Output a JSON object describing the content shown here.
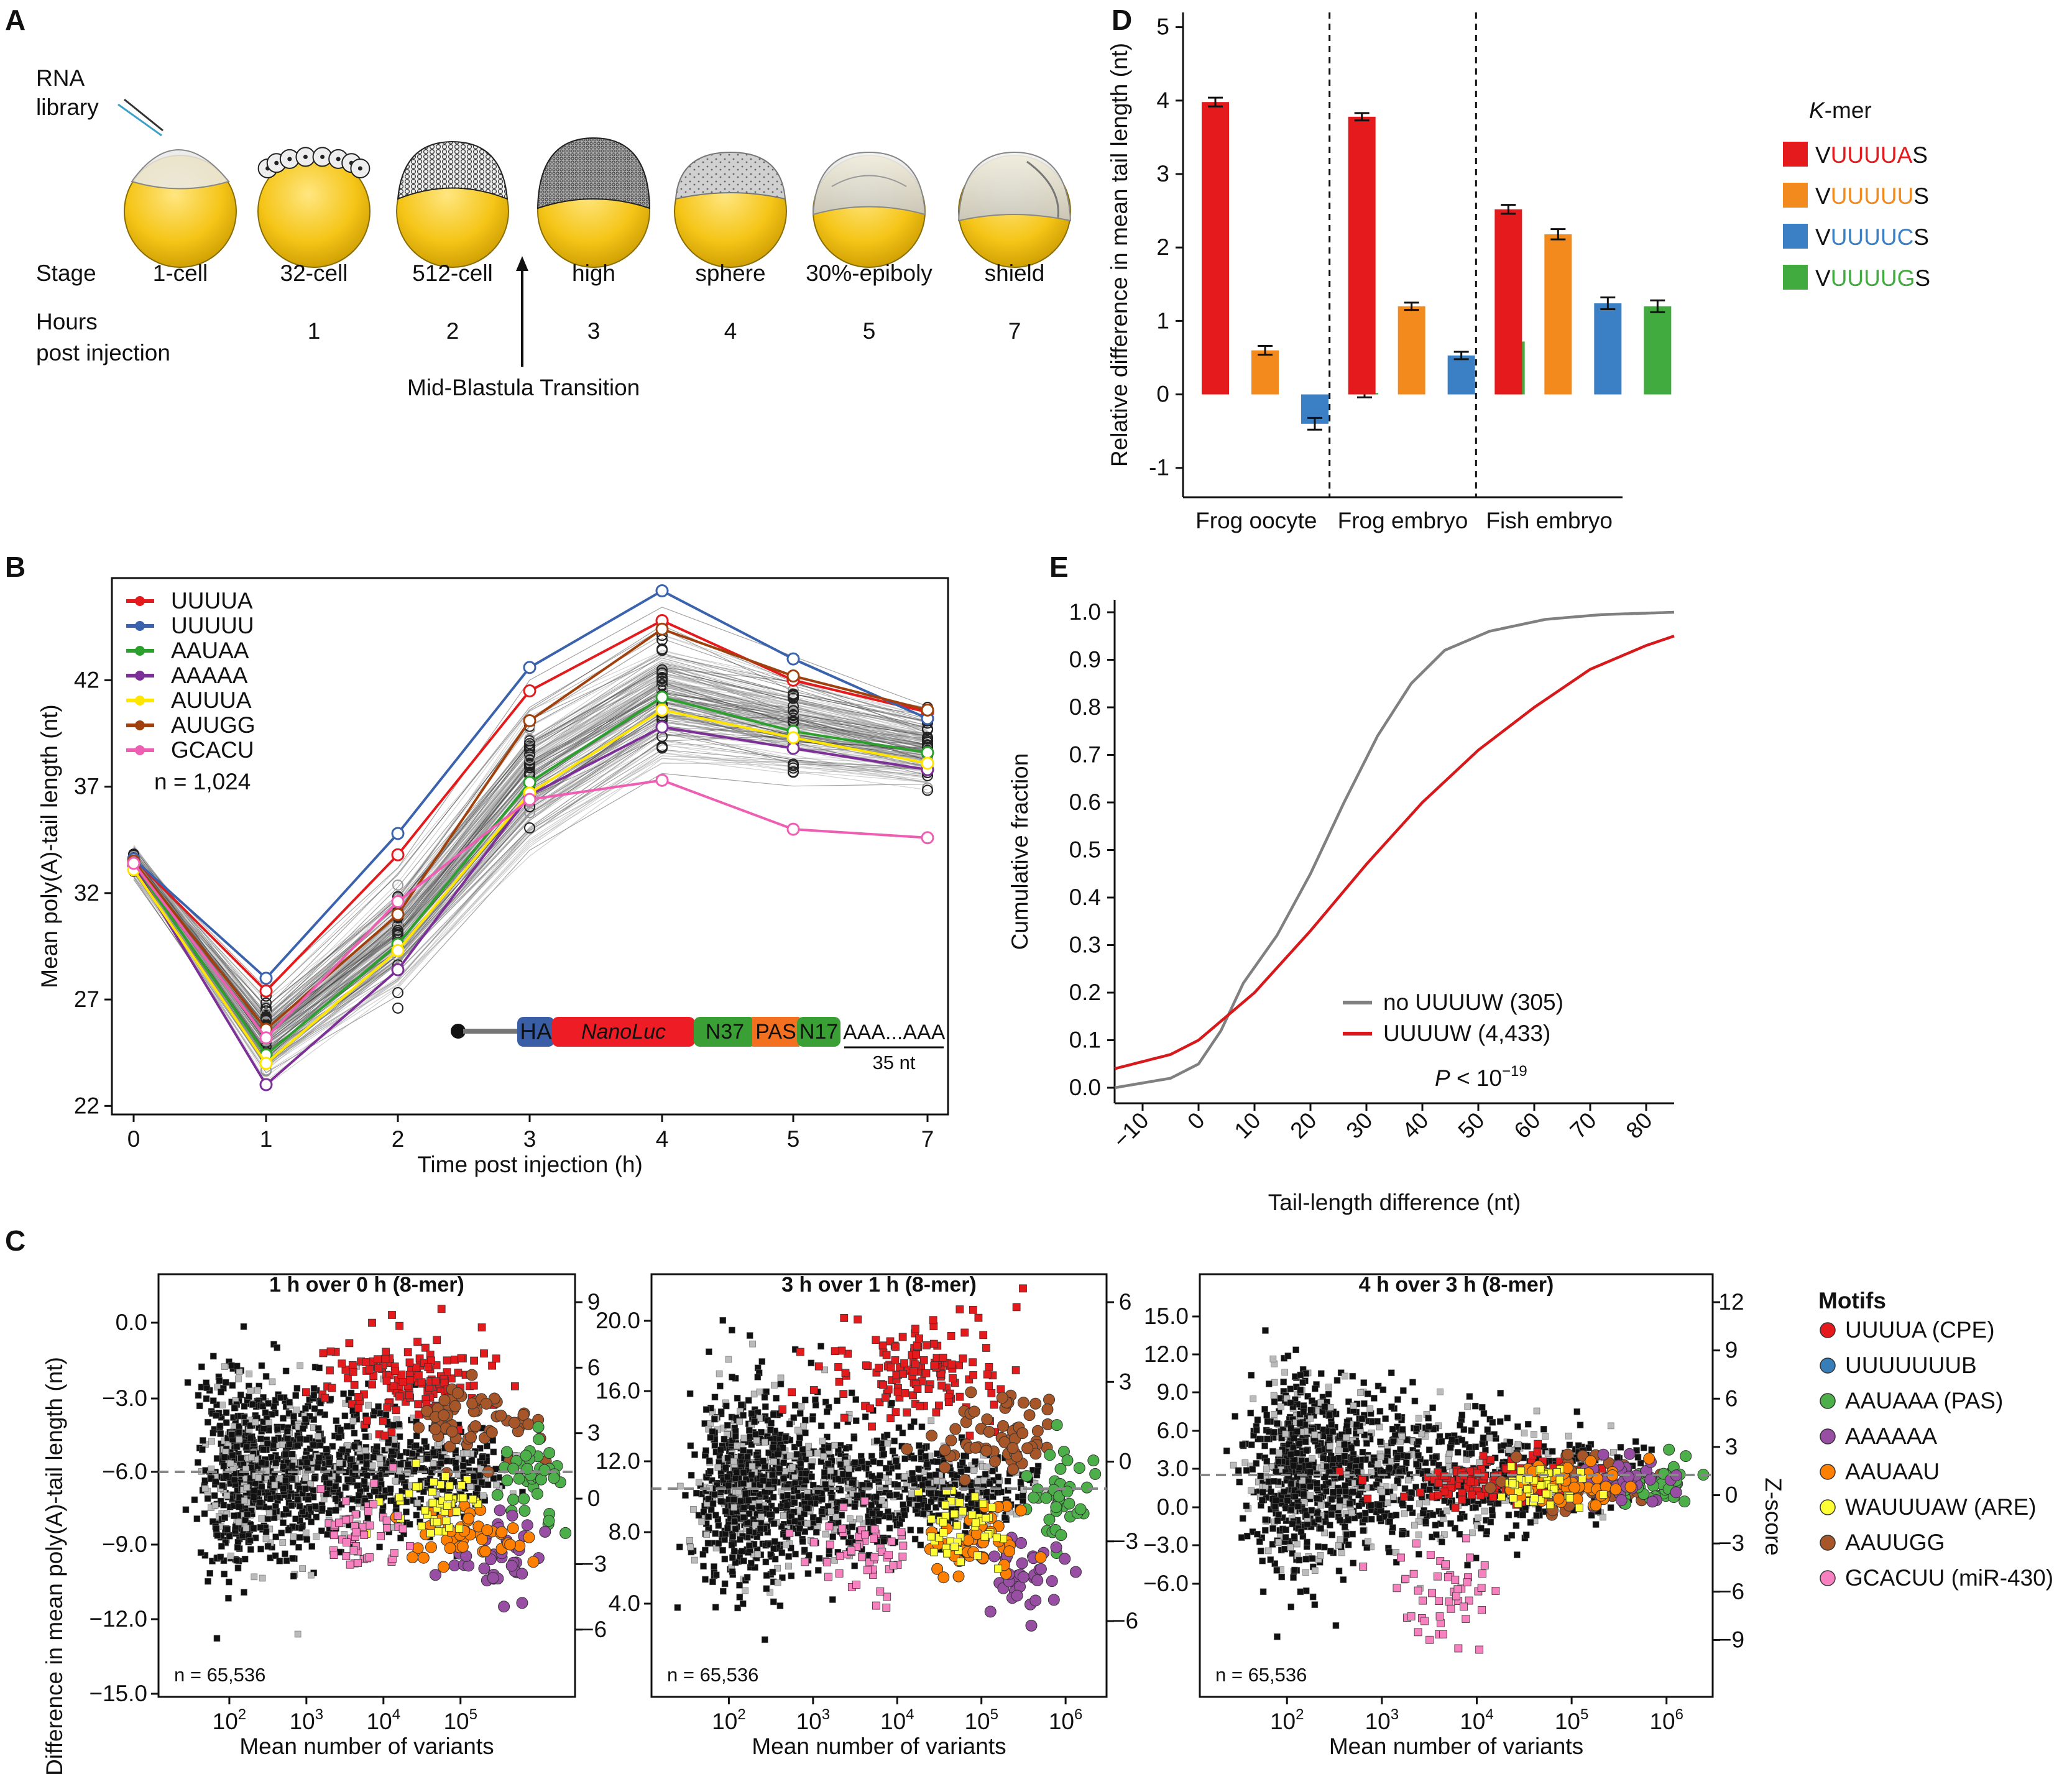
{
  "panels": {
    "a": {
      "label": "A",
      "stages": [
        "1-cell",
        "32-cell",
        "512-cell",
        "high",
        "sphere",
        "30%-epiboly",
        "shield"
      ],
      "hours": [
        "",
        "1",
        "2",
        "3",
        "4",
        "5",
        "7"
      ],
      "stage_heading": "Stage",
      "hours_heading_line1": "Hours",
      "hours_heading_line2": "post injection",
      "rna_line1": "RNA",
      "rna_line2": "library",
      "mbt_label": "Mid-Blastula Transition"
    },
    "b": {
      "label": "B",
      "n_label": "n = 1,024",
      "construct": {
        "ha": "HA",
        "nanoluc": "NanoLuc",
        "n37": "N37",
        "pas": "PAS",
        "n17": "N17",
        "tail": "AAA...AAA",
        "tail_len": "35 nt"
      }
    },
    "c": {
      "label": "C",
      "y_label": "Difference in mean poly(A)-tail length (nt)",
      "z_label": "Z-score",
      "legend_title": "Motifs"
    },
    "d": {
      "label": "D"
    },
    "e": {
      "label": "E"
    }
  },
  "chart_data": [
    {
      "id": "panel-b",
      "type": "line",
      "xlabel": "Time post injection (h)",
      "ylabel": "Mean poly(A)-tail length (nt)",
      "x": [
        0,
        1,
        2,
        3,
        4,
        5,
        7
      ],
      "x_ticks": [
        "0",
        "1",
        "2",
        "3",
        "4",
        "5",
        "7"
      ],
      "y_ticks": [
        22,
        27,
        32,
        37,
        42
      ],
      "ylim": [
        21.6,
        46.8
      ],
      "series": [
        {
          "name": "UUUUA",
          "color": "#e41a1c",
          "values": [
            33.6,
            27.4,
            33.8,
            41.5,
            44.8,
            42.0,
            40.5
          ]
        },
        {
          "name": "UUUUU",
          "color": "#3a62ad",
          "values": [
            33.6,
            28.0,
            34.8,
            42.6,
            46.2,
            43.0,
            40.2
          ]
        },
        {
          "name": "AAUAA",
          "color": "#2ca02c",
          "values": [
            33.4,
            24.4,
            29.6,
            37.2,
            41.2,
            39.6,
            38.6
          ]
        },
        {
          "name": "AAAAA",
          "color": "#7b2f97",
          "values": [
            33.3,
            23.0,
            28.4,
            36.6,
            39.8,
            38.8,
            37.8
          ]
        },
        {
          "name": "AUUUA",
          "color": "#ffe600",
          "values": [
            33.1,
            24.0,
            29.3,
            36.7,
            40.6,
            39.3,
            38.1
          ]
        },
        {
          "name": "AUUGG",
          "color": "#a0410d",
          "values": [
            33.5,
            25.6,
            31.0,
            40.1,
            44.4,
            42.2,
            40.6
          ]
        },
        {
          "name": "GCACU",
          "color": "#ee5fb3",
          "values": [
            33.4,
            25.2,
            31.6,
            36.4,
            37.3,
            35.0,
            34.6
          ]
        }
      ]
    },
    {
      "id": "panel-c1",
      "type": "scatter",
      "title": "1 h over 0 h (8-mer)",
      "xlabel": "Mean number of variants",
      "x_ticks": [
        "10^2",
        "10^3",
        "10^4",
        "10^5"
      ],
      "y_ticks": [
        0.0,
        -3.0,
        -6.0,
        -9.0,
        -12.0,
        -15.0
      ],
      "y_ticks_labels": [
        "0.0",
        "−3.0",
        "−6.0",
        "−9.0",
        "−12.0",
        "−15.0"
      ],
      "z_ticks": [
        "9",
        "6",
        "3",
        "0",
        "−3",
        "−6"
      ],
      "n_label": "n = 65,536"
    },
    {
      "id": "panel-c2",
      "type": "scatter",
      "title": "3 h over 1 h (8-mer)",
      "xlabel": "Mean number of variants",
      "x_ticks": [
        "10^2",
        "10^3",
        "10^4",
        "10^5",
        "10^6"
      ],
      "y_ticks_labels": [
        "20.0",
        "16.0",
        "12.0",
        "8.0",
        "4.0"
      ],
      "z_ticks": [
        "6",
        "3",
        "0",
        "−3",
        "−6"
      ],
      "n_label": "n = 65,536"
    },
    {
      "id": "panel-c3",
      "type": "scatter",
      "title": "4 h over 3 h (8-mer)",
      "xlabel": "Mean number of variants",
      "x_ticks": [
        "10^2",
        "10^3",
        "10^4",
        "10^5",
        "10^6"
      ],
      "y_ticks_labels": [
        "15.0",
        "12.0",
        "9.0",
        "6.0",
        "3.0",
        "0.0",
        "−3.0",
        "−6.0"
      ],
      "z_ticks": [
        "12",
        "9",
        "6",
        "3",
        "0",
        "−3",
        "−6",
        "−9"
      ],
      "n_label": "n = 65,536"
    },
    {
      "id": "panel-c-legend",
      "type": "scatter",
      "legend": [
        {
          "name": "UUUUA (CPE)",
          "color": "#e41a1c"
        },
        {
          "name": "UUUUUUUB",
          "color": "#377eb8"
        },
        {
          "name": "AAUAAA (PAS)",
          "color": "#4daf4a"
        },
        {
          "name": "AAAAAA",
          "color": "#984ea3"
        },
        {
          "name": "AAUAAU",
          "color": "#ff7f00"
        },
        {
          "name": "WAUUUAW (ARE)",
          "color": "#ffff33"
        },
        {
          "name": "AAUUGG",
          "color": "#a65628"
        },
        {
          "name": "GCACUU (miR-430)",
          "color": "#f781bf"
        }
      ]
    },
    {
      "id": "panel-d",
      "type": "bar",
      "ylabel": "Relative difference in mean tail length (nt)",
      "ylim": [
        -1.4,
        5.2
      ],
      "y_ticks": [
        -1,
        0,
        1,
        2,
        3,
        4,
        5
      ],
      "groups": [
        "Frog oocyte",
        "Frog embryo",
        "Fish embryo"
      ],
      "legend_title": "K-mer",
      "series": [
        {
          "prefix": "V",
          "core": "UUUUA",
          "suffix": "S",
          "color": "#e41a1c",
          "values": [
            3.98,
            3.78,
            2.52
          ]
        },
        {
          "prefix": "V",
          "core": "UUUUU",
          "suffix": "S",
          "color": "#f28a1d",
          "values": [
            0.6,
            1.2,
            2.18
          ]
        },
        {
          "prefix": "V",
          "core": "UUUUC",
          "suffix": "S",
          "color": "#3b7fc4",
          "values": [
            -0.4,
            0.53,
            1.24
          ]
        },
        {
          "prefix": "V",
          "core": "UUUUG",
          "suffix": "S",
          "color": "#41ab3f",
          "values": [
            0.02,
            0.72,
            1.2
          ]
        }
      ],
      "errors": [
        [
          0.06,
          0.05,
          0.06
        ],
        [
          0.06,
          0.05,
          0.07
        ],
        [
          0.08,
          0.05,
          0.08
        ],
        [
          0.06,
          0.06,
          0.08
        ]
      ]
    },
    {
      "id": "panel-e",
      "type": "line",
      "xlabel": "Tail-length difference (nt)",
      "ylabel": "Cumulative fraction",
      "xlim": [
        -15,
        85
      ],
      "ylim": [
        0,
        1
      ],
      "x_ticks": [
        "−10",
        "0",
        "10",
        "20",
        "30",
        "40",
        "50",
        "60",
        "70",
        "80"
      ],
      "y_ticks": [
        "0.0",
        "0.1",
        "0.2",
        "0.3",
        "0.4",
        "0.5",
        "0.6",
        "0.7",
        "0.8",
        "0.9",
        "1.0"
      ],
      "series": [
        {
          "name": "no UUUUW (305)",
          "color": "#808080",
          "points": [
            [
              -15,
              0.0
            ],
            [
              -5,
              0.02
            ],
            [
              0,
              0.05
            ],
            [
              4,
              0.12
            ],
            [
              8,
              0.22
            ],
            [
              14,
              0.32
            ],
            [
              20,
              0.45
            ],
            [
              26,
              0.6
            ],
            [
              32,
              0.74
            ],
            [
              38,
              0.85
            ],
            [
              44,
              0.92
            ],
            [
              52,
              0.96
            ],
            [
              62,
              0.985
            ],
            [
              72,
              0.995
            ],
            [
              85,
              1.0
            ]
          ]
        },
        {
          "name": "UUUUW (4,433)",
          "color": "#d7191c",
          "points": [
            [
              -15,
              0.04
            ],
            [
              -5,
              0.07
            ],
            [
              0,
              0.1
            ],
            [
              10,
              0.2
            ],
            [
              20,
              0.33
            ],
            [
              30,
              0.47
            ],
            [
              40,
              0.6
            ],
            [
              50,
              0.71
            ],
            [
              60,
              0.8
            ],
            [
              70,
              0.88
            ],
            [
              80,
              0.93
            ],
            [
              85,
              0.95
            ]
          ]
        }
      ],
      "p_label": "P < 10",
      "p_exp": "−19"
    }
  ]
}
